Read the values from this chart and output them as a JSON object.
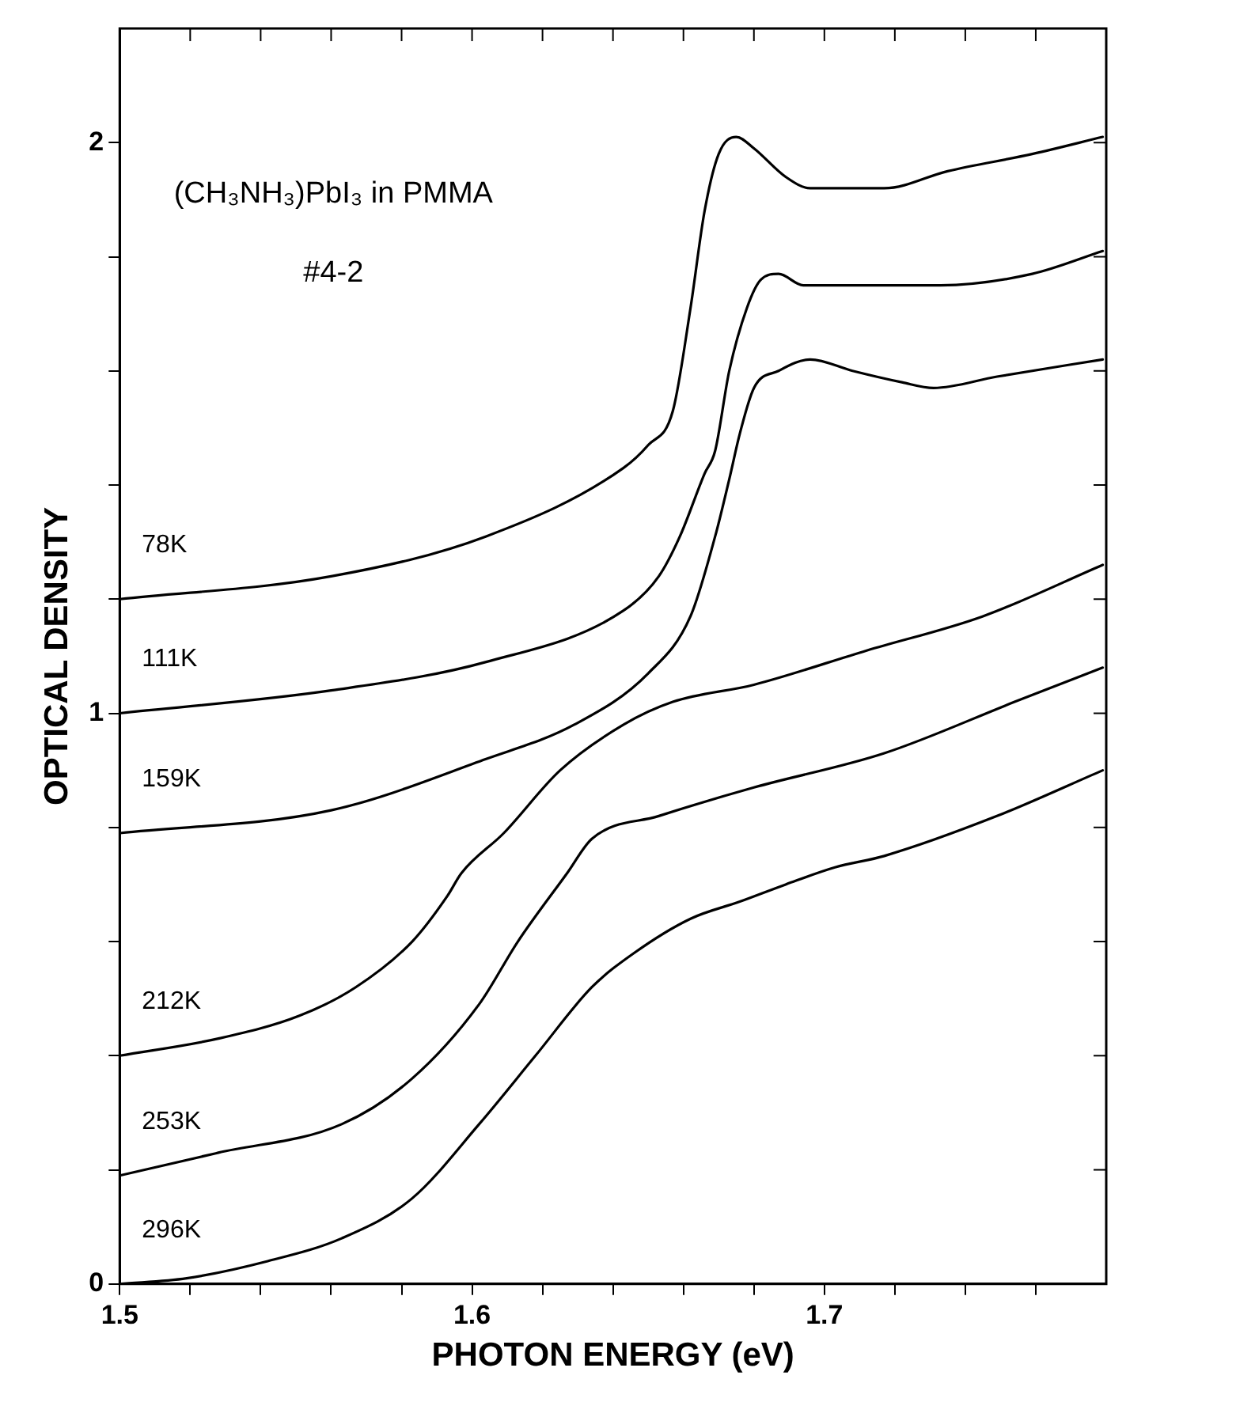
{
  "chart_data": {
    "type": "line",
    "xlabel": "PHOTON ENERGY (eV)",
    "ylabel": "OPTICAL DENSITY",
    "annotations": [
      "(CH₃NH₃)PbI₃ in PMMA",
      "#4-2"
    ],
    "xlim": [
      1.5,
      1.78
    ],
    "xticks": [
      1.5,
      {
        "value": 1.52,
        "label": null
      },
      {
        "value": 1.54,
        "label": null
      },
      {
        "value": 1.56,
        "label": null
      },
      {
        "value": 1.58,
        "label": null
      },
      1.6,
      {
        "value": 1.62,
        "label": null
      },
      {
        "value": 1.64,
        "label": null
      },
      {
        "value": 1.66,
        "label": null
      },
      {
        "value": 1.68,
        "label": null
      },
      1.7,
      {
        "value": 1.72,
        "label": null
      },
      {
        "value": 1.74,
        "label": null
      },
      {
        "value": 1.76,
        "label": null
      }
    ],
    "ylim": [
      0,
      2.2
    ],
    "yticks": [
      0,
      {
        "value": 0.2,
        "label": null
      },
      {
        "value": 0.4,
        "label": null
      },
      {
        "value": 0.6,
        "label": null
      },
      {
        "value": 0.8,
        "label": null
      },
      1,
      {
        "value": 1.2,
        "label": null
      },
      {
        "value": 1.4,
        "label": null
      },
      {
        "value": 1.6,
        "label": null
      },
      {
        "value": 1.8,
        "label": null
      },
      2
    ],
    "grid": false,
    "legend": false,
    "marker": "none",
    "line_style": "solid",
    "series": [
      {
        "name": "78K",
        "color": "#000000",
        "x": [
          1.5,
          1.56,
          1.604,
          1.643,
          1.65,
          1.657,
          1.662,
          1.666,
          1.67,
          1.675,
          1.68,
          1.689,
          1.696,
          1.717,
          1.735,
          1.759,
          1.779
        ],
        "values": [
          1.2,
          1.24,
          1.31,
          1.43,
          1.47,
          1.53,
          1.71,
          1.88,
          1.98,
          2.01,
          1.99,
          1.94,
          1.92,
          1.92,
          1.95,
          1.98,
          2.01
        ]
      },
      {
        "name": "111K",
        "color": "#000000",
        "x": [
          1.5,
          1.56,
          1.604,
          1.643,
          1.653,
          1.659,
          1.666,
          1.669,
          1.673,
          1.678,
          1.682,
          1.687,
          1.694,
          1.708,
          1.733,
          1.759,
          1.779
        ],
        "values": [
          1.0,
          1.04,
          1.09,
          1.18,
          1.24,
          1.31,
          1.42,
          1.46,
          1.6,
          1.71,
          1.76,
          1.77,
          1.75,
          1.75,
          1.75,
          1.77,
          1.81
        ]
      },
      {
        "name": "159K",
        "color": "#000000",
        "x": [
          1.5,
          1.56,
          1.604,
          1.629,
          1.65,
          1.662,
          1.669,
          1.673,
          1.676,
          1.68,
          1.687,
          1.696,
          1.708,
          1.722,
          1.731,
          1.749,
          1.779
        ],
        "values": [
          0.79,
          0.83,
          0.92,
          0.98,
          1.07,
          1.17,
          1.31,
          1.41,
          1.49,
          1.57,
          1.6,
          1.62,
          1.6,
          1.58,
          1.57,
          1.59,
          1.62
        ]
      },
      {
        "name": "212K",
        "color": "#000000",
        "x": [
          1.5,
          1.528,
          1.551,
          1.567,
          1.583,
          1.593,
          1.597,
          1.609,
          1.625,
          1.643,
          1.657,
          1.68,
          1.712,
          1.745,
          1.779
        ],
        "values": [
          0.4,
          0.43,
          0.47,
          0.52,
          0.6,
          0.68,
          0.72,
          0.79,
          0.9,
          0.98,
          1.02,
          1.05,
          1.11,
          1.17,
          1.26
        ]
      },
      {
        "name": "253K",
        "color": "#000000",
        "x": [
          1.5,
          1.528,
          1.563,
          1.583,
          1.602,
          1.613,
          1.627,
          1.634,
          1.653,
          1.68,
          1.717,
          1.754,
          1.779
        ],
        "values": [
          0.19,
          0.23,
          0.28,
          0.36,
          0.49,
          0.6,
          0.72,
          0.78,
          0.82,
          0.87,
          0.93,
          1.02,
          1.08
        ]
      },
      {
        "name": "296K",
        "color": "#000000",
        "x": [
          1.5,
          1.519,
          1.542,
          1.563,
          1.583,
          1.602,
          1.618,
          1.634,
          1.646,
          1.662,
          1.676,
          1.689,
          1.703,
          1.717,
          1.749,
          1.779
        ],
        "values": [
          0.0,
          0.01,
          0.04,
          0.08,
          0.15,
          0.28,
          0.4,
          0.52,
          0.58,
          0.64,
          0.67,
          0.7,
          0.73,
          0.75,
          0.82,
          0.9
        ]
      }
    ]
  }
}
